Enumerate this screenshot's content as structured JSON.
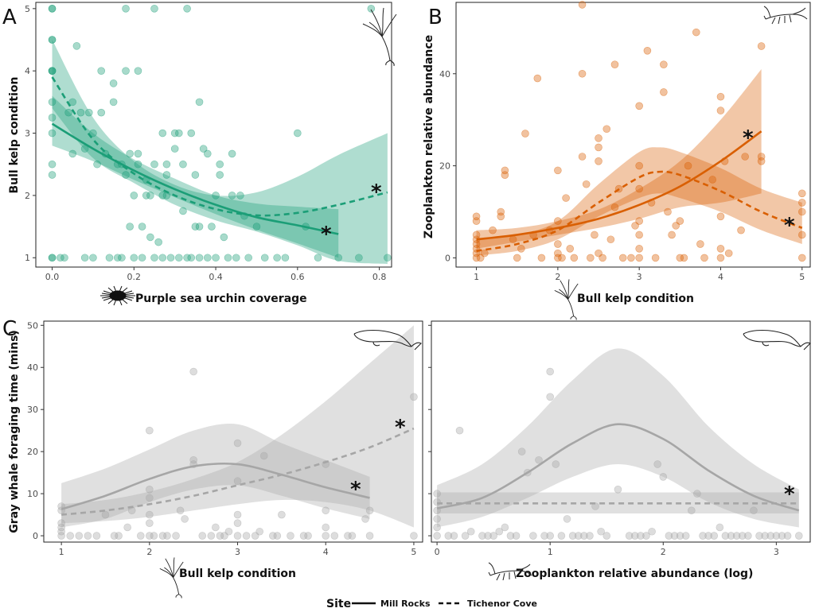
{
  "panel_letters": [
    "A",
    "B",
    "C"
  ],
  "legend": {
    "title": "Site",
    "entries": [
      {
        "label": "Mill Rocks",
        "linetype": "solid"
      },
      {
        "label": "Tichenor Cove",
        "linetype": "dashed"
      }
    ],
    "placement": "bottom"
  },
  "icons": [
    "bull-kelp-icon",
    "zooplankton-icon",
    "gray-whale-icon",
    "purple-sea-urchin-icon"
  ],
  "colors": {
    "panel_A": "#1b9e77",
    "panel_B": "#d95f02",
    "panel_C": "#a6a6a6"
  },
  "chart_data": [
    {
      "id": "A",
      "type": "scatter",
      "xlabel": "Purple sea urchin coverage",
      "ylabel": "Bull kelp condition",
      "xlim": [
        -0.04,
        0.83
      ],
      "ylim": [
        0.85,
        5.1
      ],
      "xticks": [
        0,
        0.2,
        0.4,
        0.6,
        0.8
      ],
      "xtick_labels": [
        "0.0",
        "0.2",
        "0.4",
        "0.6",
        "0.8"
      ],
      "yticks": [
        1,
        2,
        3,
        4,
        5
      ],
      "ytick_labels": [
        "1",
        "2",
        "3",
        "4",
        "5"
      ],
      "grid": false,
      "significance_annotations": [
        {
          "text": "*",
          "series": "Mill Rocks"
        },
        {
          "text": "*",
          "series": "Tichenor Cove"
        }
      ],
      "series": [
        {
          "name": "Mill Rocks",
          "linetype": "solid",
          "x": [
            0,
            0.1,
            0.2,
            0.3,
            0.4,
            0.5,
            0.6,
            0.7
          ],
          "y": [
            3.15,
            2.75,
            2.4,
            2.1,
            1.85,
            1.65,
            1.52,
            1.38
          ],
          "lower": [
            2.8,
            2.55,
            2.25,
            1.97,
            1.7,
            1.45,
            1.23,
            1.0
          ],
          "upper": [
            3.6,
            3.0,
            2.58,
            2.27,
            2.0,
            1.87,
            1.82,
            1.78
          ]
        },
        {
          "name": "Tichenor Cove",
          "linetype": "dashed",
          "x": [
            0,
            0.1,
            0.2,
            0.3,
            0.4,
            0.5,
            0.6,
            0.7,
            0.82
          ],
          "y": [
            3.9,
            2.9,
            2.35,
            2.0,
            1.78,
            1.68,
            1.72,
            1.85,
            2.05
          ],
          "lower": [
            3.4,
            2.6,
            2.2,
            1.85,
            1.6,
            1.42,
            1.2,
            0.95,
            0.9
          ],
          "upper": [
            4.5,
            3.25,
            2.55,
            2.17,
            2.0,
            2.05,
            2.3,
            2.65,
            3.0
          ]
        }
      ],
      "points": {
        "x": [
          0,
          0,
          0,
          0,
          0,
          0,
          0,
          0,
          0,
          0,
          0,
          0,
          0,
          0,
          0.02,
          0.03,
          0.04,
          0.05,
          0.05,
          0.06,
          0.07,
          0.08,
          0.08,
          0.09,
          0.1,
          0.1,
          0.11,
          0.12,
          0.12,
          0.13,
          0.14,
          0.15,
          0.15,
          0.16,
          0.17,
          0.17,
          0.18,
          0.18,
          0.19,
          0.2,
          0.2,
          0.21,
          0.21,
          0.22,
          0.22,
          0.23,
          0.24,
          0.24,
          0.25,
          0.25,
          0.26,
          0.27,
          0.27,
          0.28,
          0.28,
          0.29,
          0.3,
          0.3,
          0.31,
          0.32,
          0.32,
          0.33,
          0.34,
          0.34,
          0.35,
          0.36,
          0.36,
          0.37,
          0.38,
          0.38,
          0.39,
          0.4,
          0.4,
          0.41,
          0.42,
          0.43,
          0.44,
          0.45,
          0.46,
          0.48,
          0.5,
          0.52,
          0.55,
          0.57,
          0.6,
          0.62,
          0.65,
          0.7,
          0.75,
          0.78,
          0.82,
          0.18,
          0.25,
          0.33,
          0.23,
          0.28,
          0.31,
          0.36,
          0.44,
          0.47,
          0.21,
          0.27,
          0.35,
          0.41,
          0.16,
          0.19
        ],
        "y": [
          5,
          4.5,
          4,
          4,
          3.5,
          3.25,
          2.5,
          2.33,
          1,
          1,
          3,
          5,
          4.5,
          4,
          1,
          1,
          3.33,
          2.67,
          3.5,
          4.4,
          3.33,
          2.75,
          1,
          3.33,
          3,
          1,
          2.5,
          3.33,
          4,
          2.67,
          1,
          3.5,
          3.8,
          2.5,
          1,
          2.5,
          2.33,
          4,
          1.5,
          1,
          2,
          2.5,
          4,
          1.5,
          1,
          2.25,
          2,
          1.33,
          1,
          2.5,
          1.25,
          3,
          1,
          2.33,
          2,
          1,
          2.75,
          3,
          1,
          2.5,
          1.75,
          5,
          1,
          3,
          2.33,
          1.5,
          1,
          2.75,
          1,
          2.67,
          1.5,
          1,
          2,
          2.33,
          1.33,
          1,
          2.67,
          1,
          2,
          1,
          1.5,
          1,
          1,
          1,
          3,
          1.5,
          1,
          1,
          1,
          5,
          1,
          5,
          5,
          1,
          2,
          2.5,
          3,
          3.5,
          2,
          1.67,
          2.67,
          2,
          1.5,
          2.5,
          1,
          2.67
        ]
      }
    },
    {
      "id": "B",
      "type": "scatter",
      "xlabel": "Bull kelp condition",
      "ylabel": "Zooplankton relative abundance",
      "xlim": [
        0.75,
        5.1
      ],
      "ylim": [
        -2,
        55.5
      ],
      "xticks": [
        1,
        2,
        3,
        4,
        5
      ],
      "xtick_labels": [
        "1",
        "2",
        "3",
        "4",
        "5"
      ],
      "yticks": [
        0,
        20,
        40
      ],
      "ytick_labels": [
        "0",
        "20",
        "40"
      ],
      "grid": false,
      "significance_annotations": [
        {
          "text": "*",
          "series": "Mill Rocks"
        },
        {
          "text": "*",
          "series": "Tichenor Cove"
        }
      ],
      "series": [
        {
          "name": "Mill Rocks",
          "linetype": "solid",
          "x": [
            1,
            1.5,
            2,
            2.5,
            3,
            3.5,
            4,
            4.5
          ],
          "y": [
            4,
            5,
            6.5,
            8.5,
            11.5,
            15.5,
            21,
            27.5
          ],
          "lower": [
            2,
            3.5,
            5,
            6.5,
            8.5,
            11,
            12,
            14
          ],
          "upper": [
            6,
            6.5,
            8,
            10.5,
            15,
            21,
            30,
            41
          ]
        },
        {
          "name": "Tichenor Cove",
          "linetype": "dashed",
          "x": [
            1,
            1.5,
            2,
            2.5,
            3,
            3.25,
            3.5,
            4,
            4.5,
            5
          ],
          "y": [
            1.5,
            3,
            6,
            12,
            17.5,
            18.7,
            18,
            14.5,
            10,
            6.5
          ],
          "lower": [
            0.5,
            1.5,
            4,
            9,
            13,
            14,
            13,
            10,
            6,
            3
          ],
          "upper": [
            4,
            5,
            8,
            16,
            23,
            24,
            23,
            19.5,
            15,
            12
          ]
        }
      ],
      "points": {
        "x": [
          1,
          1,
          1,
          1,
          1,
          1,
          1,
          1,
          1.05,
          1.3,
          1.3,
          1.35,
          1.35,
          1.5,
          1.6,
          1.7,
          1.75,
          1.8,
          1.9,
          2,
          2,
          2,
          2,
          2,
          2.05,
          2.1,
          2.2,
          2.3,
          2.3,
          2.3,
          2.35,
          2.4,
          2.5,
          2.5,
          2.5,
          2.5,
          2.55,
          2.6,
          2.7,
          2.7,
          2.75,
          2.8,
          2.9,
          3,
          3,
          3,
          3,
          3,
          3,
          3,
          3.1,
          3.2,
          3.3,
          3.3,
          3.35,
          3.4,
          3.5,
          3.5,
          3.6,
          3.7,
          3.8,
          3.9,
          4,
          4,
          4,
          4,
          4,
          4.05,
          4.1,
          4.3,
          4.5,
          4.5,
          4.5,
          5,
          5,
          5,
          5,
          5,
          1.2,
          1.45,
          2.15,
          2.65,
          3.15,
          3.45,
          3.75,
          4.25,
          1.1,
          1.55,
          2.45,
          2.95,
          3.55
        ],
        "y": [
          0,
          1,
          2,
          3,
          5,
          8,
          9,
          4,
          0,
          9,
          10,
          18,
          19,
          0,
          27,
          5,
          39,
          0,
          6,
          0,
          1,
          3,
          8,
          19,
          0,
          13,
          0,
          55,
          40,
          22,
          16,
          0,
          21,
          24,
          26,
          1,
          0,
          28,
          42,
          11,
          15,
          0,
          0,
          0,
          2,
          5,
          8,
          15,
          20,
          33,
          45,
          0,
          42,
          36,
          10,
          5,
          0,
          8,
          20,
          49,
          0,
          17,
          35,
          32,
          9,
          0,
          2,
          21,
          1,
          22,
          22,
          21,
          46,
          14,
          12,
          10,
          5,
          0,
          6,
          4,
          2,
          4,
          12,
          7,
          3,
          6,
          1,
          2,
          5,
          7,
          0
        ]
      }
    },
    {
      "id": "C1",
      "type": "scatter",
      "xlabel": "Bull kelp condition",
      "ylabel": "Gray whale foraging time (mins)",
      "xlim": [
        0.8,
        5.1
      ],
      "ylim": [
        -1.5,
        51
      ],
      "xticks": [
        1,
        2,
        3,
        4,
        5
      ],
      "xtick_labels": [
        "1",
        "2",
        "3",
        "4",
        "5"
      ],
      "yticks": [
        0,
        10,
        20,
        30,
        40,
        50
      ],
      "ytick_labels": [
        "0",
        "10",
        "20",
        "30",
        "40",
        "50"
      ],
      "grid": false,
      "significance_annotations": [
        {
          "text": "*",
          "series": "Mill Rocks"
        },
        {
          "text": "*",
          "series": "Tichenor Cove"
        }
      ],
      "series": [
        {
          "name": "Mill Rocks",
          "linetype": "solid",
          "x": [
            1,
            1.5,
            2,
            2.5,
            3,
            3.5,
            4,
            4.5
          ],
          "y": [
            6.3,
            9.5,
            13.5,
            16.5,
            17,
            14.5,
            11.5,
            9
          ],
          "lower": [
            2,
            4,
            8,
            11,
            12,
            9.5,
            6.5,
            4
          ],
          "upper": [
            12.5,
            16,
            20.5,
            25,
            26.5,
            22,
            18,
            14
          ]
        },
        {
          "name": "Tichenor Cove",
          "linetype": "dashed",
          "x": [
            1,
            1.5,
            2,
            2.5,
            3,
            3.5,
            4,
            4.5,
            5
          ],
          "y": [
            5,
            6,
            7.5,
            9.5,
            12,
            14.5,
            17.5,
            21,
            25.5
          ],
          "lower": [
            3,
            3.5,
            4.5,
            6,
            7.5,
            8.5,
            8,
            6,
            2
          ],
          "upper": [
            7.5,
            8.5,
            10.5,
            13.5,
            17.5,
            24,
            32,
            41,
            50
          ]
        }
      ],
      "points": {
        "x": [
          1,
          1,
          1,
          1,
          1,
          1,
          1.2,
          1.3,
          1.5,
          1.6,
          1.75,
          1.8,
          1.9,
          2,
          2,
          2,
          2,
          2,
          2,
          2.05,
          2.2,
          2.3,
          2.4,
          2.5,
          2.5,
          2.5,
          2.6,
          2.7,
          2.8,
          2.9,
          3,
          3,
          3,
          3,
          3,
          3.1,
          3.2,
          3.3,
          3.4,
          3.5,
          3.6,
          3.8,
          4,
          4,
          4,
          4,
          4.1,
          4.3,
          4.5,
          4.5,
          5,
          5,
          1.1,
          1.4,
          2.15,
          2.75,
          3.25,
          3.75,
          4.25,
          1.65,
          2.35,
          2.85,
          3.45,
          4.45
        ],
        "y": [
          0,
          1,
          2,
          3,
          6,
          7,
          0,
          0,
          5,
          0,
          2,
          6,
          0,
          0,
          3,
          5,
          9,
          11,
          25,
          0,
          0,
          0,
          4,
          18,
          17,
          39,
          0,
          0,
          0,
          1,
          0,
          3,
          5,
          13,
          22,
          0,
          0,
          19,
          0,
          5,
          0,
          0,
          0,
          2,
          6,
          17,
          0,
          0,
          0,
          6,
          0,
          33,
          0,
          0,
          0,
          2,
          1,
          0,
          0,
          0,
          6,
          0,
          0,
          4
        ]
      }
    },
    {
      "id": "C2",
      "type": "scatter",
      "xlabel": "Zooplankton relative abundance (log)",
      "ylabel": "",
      "xlim": [
        -0.05,
        3.3
      ],
      "ylim": [
        -1.5,
        51
      ],
      "xticks": [
        0,
        1,
        2,
        3
      ],
      "xtick_labels": [
        "0",
        "1",
        "2",
        "3"
      ],
      "yticks": [
        0,
        10,
        20,
        30,
        40,
        50
      ],
      "ytick_labels": [],
      "grid": false,
      "significance_annotations": [
        {
          "text": "*",
          "series": "Tichenor Cove"
        }
      ],
      "series": [
        {
          "name": "Mill Rocks",
          "linetype": "solid",
          "x": [
            0,
            0.4,
            0.8,
            1.2,
            1.6,
            2.0,
            2.4,
            2.8,
            3.2
          ],
          "y": [
            6.5,
            9,
            15,
            22,
            26.5,
            23,
            15.5,
            9.5,
            6
          ],
          "lower": [
            2,
            4.5,
            9,
            14,
            17,
            14,
            8,
            4,
            2
          ],
          "upper": [
            12,
            17,
            26,
            37,
            44.5,
            38,
            26,
            17,
            11
          ]
        },
        {
          "name": "Tichenor Cove",
          "linetype": "dashed",
          "x": [
            0,
            0.8,
            1.6,
            2.4,
            3.2
          ],
          "y": [
            7.7,
            7.7,
            7.7,
            7.7,
            7.7
          ],
          "lower": [
            5.3,
            5.3,
            5.3,
            5.3,
            5.3
          ],
          "upper": [
            10.3,
            10.3,
            10.3,
            10.3,
            10.3
          ]
        }
      ],
      "points": {
        "x": [
          0,
          0,
          0,
          0,
          0,
          0,
          0.1,
          0.2,
          0.25,
          0.3,
          0.4,
          0.5,
          0.6,
          0.7,
          0.75,
          0.8,
          0.85,
          0.9,
          0.95,
          1,
          1,
          1,
          1.05,
          1.1,
          1.15,
          1.2,
          1.3,
          1.4,
          1.5,
          1.6,
          1.7,
          1.8,
          1.9,
          1.95,
          2,
          2.05,
          2.1,
          2.2,
          2.3,
          2.4,
          2.5,
          2.6,
          2.7,
          2.8,
          2.9,
          3,
          3.1,
          3.2,
          0.15,
          0.45,
          0.55,
          0.65,
          1.25,
          1.35,
          1.45,
          1.75,
          1.85,
          2.15,
          2.25,
          2.35,
          2.45,
          2.55,
          2.65,
          2.75,
          2.85,
          2.95,
          3.05
        ],
        "y": [
          0,
          2,
          4,
          6,
          8,
          10,
          0,
          25,
          0,
          1,
          0,
          0,
          2,
          0,
          20,
          15,
          0,
          18,
          0,
          39,
          33,
          0,
          17,
          0,
          4,
          0,
          0,
          7,
          0,
          11,
          0,
          0,
          1,
          17,
          14,
          0,
          0,
          0,
          10,
          0,
          2,
          0,
          0,
          6,
          0,
          0,
          0,
          0,
          0,
          0,
          1,
          0,
          0,
          0,
          1,
          0,
          0,
          0,
          6,
          0,
          0,
          0,
          0,
          0,
          0,
          0,
          0
        ]
      }
    }
  ]
}
